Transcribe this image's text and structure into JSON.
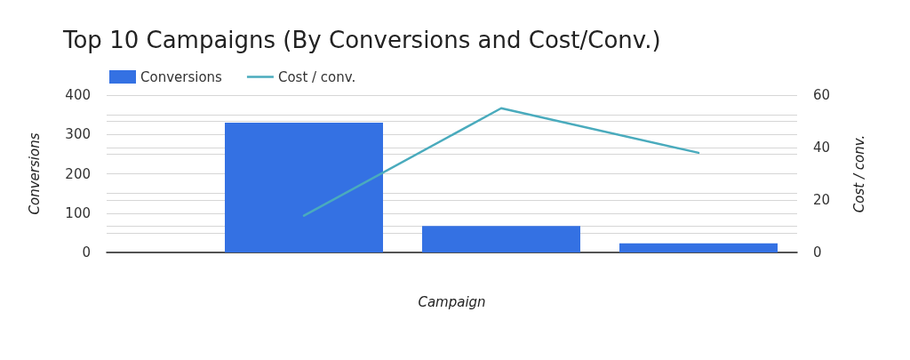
{
  "chart_data": {
    "type": "bar",
    "title": "Top 10 Campaigns (By Conversions and Cost/Conv.)",
    "xlabel": "Campaign",
    "ylabel": "Conversions",
    "y2label": "Cost / conv.",
    "categories": [
      null,
      null,
      null
    ],
    "series": [
      {
        "name": "Conversions",
        "color": "#3471e3",
        "values": [
          330,
          67,
          23
        ]
      },
      {
        "name": "Cost / conv.",
        "type": "line",
        "axis": "y2",
        "color": "#4aabbd",
        "values": [
          14,
          55,
          38
        ]
      }
    ],
    "ylim": [
      0,
      400
    ],
    "yticks": [
      0,
      100,
      200,
      300,
      400
    ],
    "y2lim": [
      0,
      60
    ],
    "y2ticks": [
      0,
      20,
      40,
      60
    ],
    "grid": true,
    "legend": "top left",
    "marker": "none",
    "line_style": "solid"
  }
}
